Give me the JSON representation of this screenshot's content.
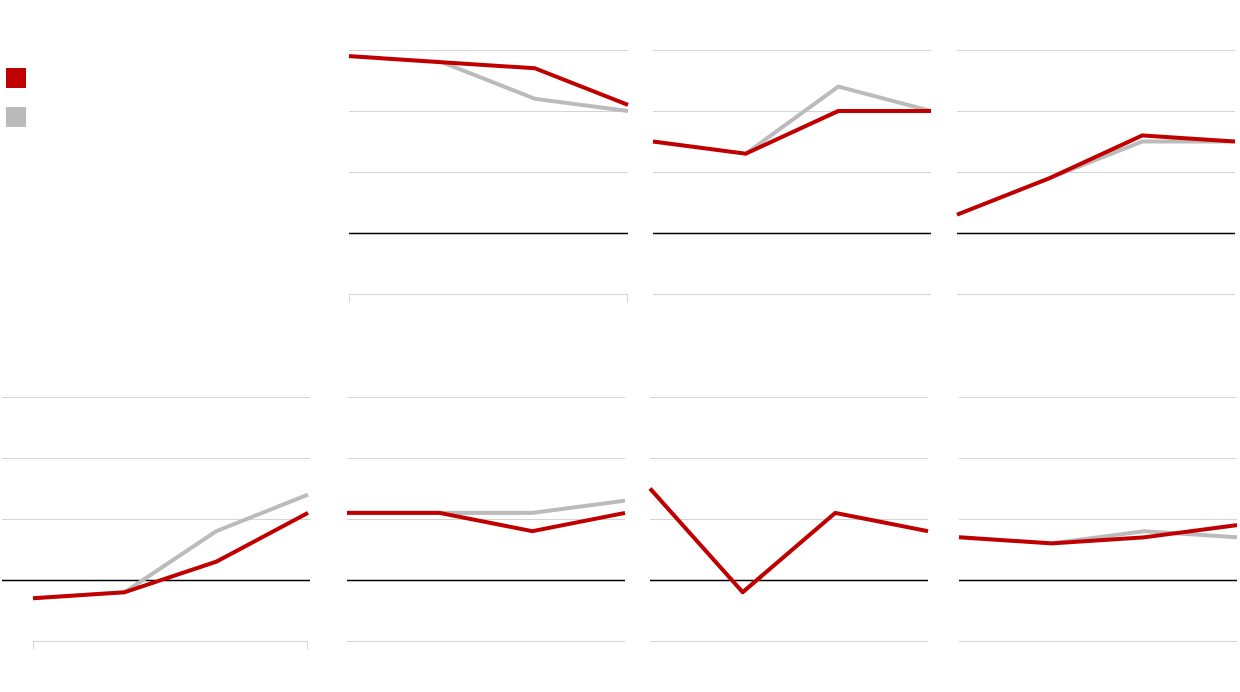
{
  "colors": {
    "series_a": "#c00000",
    "series_b": "#bbbbbb",
    "gridline": "#d4d4d4",
    "baseline": "#000000"
  },
  "legend": [
    {
      "name": "",
      "color": "#c00000"
    },
    {
      "name": "",
      "color": "#bbbbbb"
    }
  ],
  "chart_data": [
    {
      "type": "line",
      "panel": "row1-col2",
      "x": [
        0,
        1,
        2,
        3
      ],
      "ylim": [
        -1,
        3
      ],
      "baseline": 0,
      "grid": true,
      "series": [
        {
          "values": [
            2.9,
            2.8,
            2.7,
            2.1
          ]
        },
        {
          "values": [
            2.9,
            2.8,
            2.2,
            2.0
          ]
        }
      ]
    },
    {
      "type": "line",
      "panel": "row1-col3",
      "x": [
        0,
        1,
        2,
        3
      ],
      "ylim": [
        -1,
        3
      ],
      "baseline": 0,
      "grid": true,
      "series": [
        {
          "values": [
            1.5,
            1.3,
            2.0,
            2.0
          ]
        },
        {
          "values": [
            1.5,
            1.3,
            2.4,
            2.0
          ]
        }
      ]
    },
    {
      "type": "line",
      "panel": "row1-col4",
      "x": [
        0,
        1,
        2,
        3
      ],
      "ylim": [
        -1,
        3
      ],
      "baseline": 0,
      "grid": true,
      "series": [
        {
          "values": [
            0.3,
            0.9,
            1.6,
            1.5
          ]
        },
        {
          "values": [
            0.3,
            0.9,
            1.5,
            1.5
          ]
        }
      ]
    },
    {
      "type": "line",
      "panel": "row2-col1",
      "x": [
        0,
        1,
        2,
        3
      ],
      "ylim": [
        -1,
        3
      ],
      "baseline": 0,
      "grid": true,
      "series": [
        {
          "values": [
            -0.3,
            -0.2,
            0.3,
            1.1
          ]
        },
        {
          "values": [
            -0.3,
            -0.2,
            0.8,
            1.4
          ]
        }
      ]
    },
    {
      "type": "line",
      "panel": "row2-col2",
      "x": [
        0,
        1,
        2,
        3
      ],
      "ylim": [
        -1,
        3
      ],
      "baseline": 0,
      "grid": true,
      "series": [
        {
          "values": [
            1.1,
            1.1,
            0.8,
            1.1
          ]
        },
        {
          "values": [
            1.1,
            1.1,
            1.1,
            1.3
          ]
        }
      ]
    },
    {
      "type": "line",
      "panel": "row2-col3",
      "x": [
        0,
        1,
        2,
        3
      ],
      "ylim": [
        -1,
        3
      ],
      "baseline": 0,
      "grid": true,
      "series": [
        {
          "values": [
            1.5,
            -0.2,
            1.1,
            0.8
          ]
        },
        {
          "values": [
            1.5,
            -0.2,
            1.1,
            0.8
          ]
        }
      ]
    },
    {
      "type": "line",
      "panel": "row2-col4",
      "x": [
        0,
        1,
        2,
        3
      ],
      "ylim": [
        -1,
        3
      ],
      "baseline": 0,
      "grid": true,
      "series": [
        {
          "values": [
            0.7,
            0.6,
            0.7,
            0.9
          ]
        },
        {
          "values": [
            0.7,
            0.6,
            0.8,
            0.7
          ]
        }
      ]
    }
  ]
}
